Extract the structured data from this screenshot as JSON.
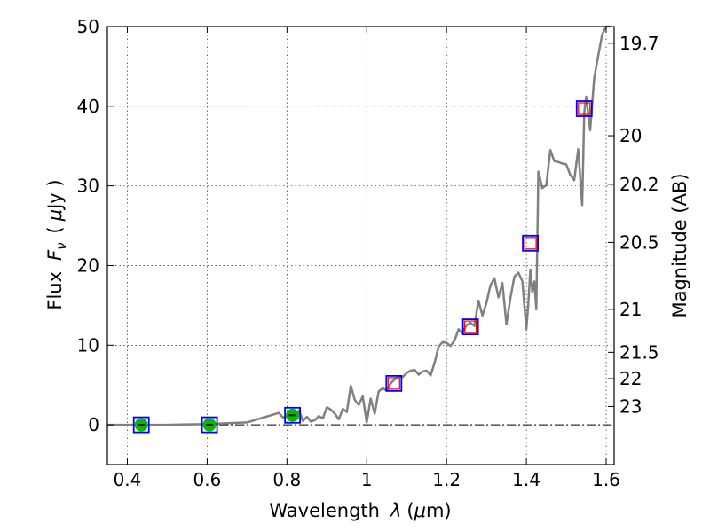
{
  "chart_data": {
    "type": "line",
    "xlabel_prefix": "Wavelength",
    "xlabel_symbol": "λ",
    "xlabel_unit_open": "(",
    "xlabel_unit_mu": "μ",
    "xlabel_unit_rest": "m)",
    "ylabel_prefix": "Flux",
    "ylabel_symbol": "F",
    "ylabel_subscript": "ν",
    "ylabel_unit_open": "(",
    "ylabel_unit_mu": "μ",
    "ylabel_unit_rest": "Jy )",
    "y2label": "Magnitude (AB)",
    "xlim": [
      0.35,
      1.62
    ],
    "ylim": [
      -5,
      50
    ],
    "grid": true,
    "x_ticks": [
      {
        "value": 0.4,
        "label": "0.4"
      },
      {
        "value": 0.6,
        "label": "0.6"
      },
      {
        "value": 0.8,
        "label": "0.8"
      },
      {
        "value": 1.0,
        "label": "1"
      },
      {
        "value": 1.2,
        "label": "1.2"
      },
      {
        "value": 1.4,
        "label": "1.4"
      },
      {
        "value": 1.6,
        "label": "1.6"
      }
    ],
    "y_ticks": [
      {
        "value": 0,
        "label": "0"
      },
      {
        "value": 10,
        "label": "10"
      },
      {
        "value": 20,
        "label": "20"
      },
      {
        "value": 30,
        "label": "30"
      },
      {
        "value": 40,
        "label": "40"
      },
      {
        "value": 50,
        "label": "50"
      }
    ],
    "mag_ticks": [
      {
        "flux": 47.9,
        "label": "19.7"
      },
      {
        "flux": 36.3,
        "label": "20"
      },
      {
        "flux": 30.2,
        "label": "20.2"
      },
      {
        "flux": 22.9,
        "label": "20.5"
      },
      {
        "flux": 14.5,
        "label": "21"
      },
      {
        "flux": 9.1,
        "label": "21.5"
      },
      {
        "flux": 5.8,
        "label": "22"
      },
      {
        "flux": 2.3,
        "label": "23"
      }
    ],
    "series": [
      {
        "color": "#808080",
        "x": [
          0.35,
          0.4,
          0.45,
          0.5,
          0.55,
          0.6,
          0.65,
          0.7,
          0.72,
          0.74,
          0.76,
          0.78,
          0.79,
          0.8,
          0.81,
          0.82,
          0.83,
          0.84,
          0.85,
          0.86,
          0.87,
          0.88,
          0.89,
          0.9,
          0.91,
          0.92,
          0.93,
          0.94,
          0.95,
          0.96,
          0.97,
          0.98,
          0.99,
          1.0,
          1.01,
          1.02,
          1.03,
          1.04,
          1.05,
          1.06,
          1.07,
          1.08,
          1.09,
          1.1,
          1.11,
          1.12,
          1.13,
          1.14,
          1.15,
          1.16,
          1.17,
          1.18,
          1.19,
          1.2,
          1.21,
          1.22,
          1.23,
          1.24,
          1.25,
          1.26,
          1.27,
          1.28,
          1.29,
          1.3,
          1.31,
          1.32,
          1.33,
          1.34,
          1.35,
          1.36,
          1.37,
          1.38,
          1.39,
          1.4,
          1.405,
          1.41,
          1.415,
          1.42,
          1.425,
          1.43,
          1.44,
          1.45,
          1.46,
          1.47,
          1.48,
          1.49,
          1.5,
          1.51,
          1.52,
          1.53,
          1.54,
          1.545,
          1.55,
          1.56,
          1.57,
          1.58,
          1.59,
          1.6,
          1.61
        ],
        "y": [
          0.0,
          0.0,
          0.0,
          0.0,
          0.05,
          0.1,
          0.2,
          0.3,
          0.6,
          0.9,
          1.2,
          1.5,
          0.9,
          1.1,
          1.4,
          1.2,
          1.8,
          0.5,
          1.0,
          0.4,
          0.6,
          1.1,
          0.8,
          2.2,
          1.9,
          1.4,
          0.7,
          2.0,
          1.6,
          4.9,
          3.1,
          2.5,
          3.6,
          0.3,
          3.3,
          1.4,
          4.2,
          4.6,
          4.3,
          5.2,
          5.7,
          6.1,
          6.0,
          6.5,
          6.8,
          6.9,
          6.3,
          6.7,
          6.8,
          6.2,
          7.8,
          9.8,
          10.4,
          10.3,
          9.9,
          10.6,
          12.0,
          11.5,
          12.5,
          12.8,
          12.4,
          15.6,
          13.7,
          15.3,
          17.5,
          18.4,
          16.0,
          17.8,
          12.6,
          15.9,
          18.6,
          19.1,
          18.0,
          12.0,
          15.2,
          19.5,
          16.7,
          18.0,
          14.5,
          31.8,
          29.7,
          30.1,
          34.5,
          33.1,
          33.0,
          32.8,
          32.7,
          31.4,
          30.7,
          34.6,
          27.6,
          39.2,
          41.2,
          37.0,
          43.5,
          46.3,
          49.0,
          50.0,
          50.0
        ]
      }
    ],
    "photometry": [
      {
        "x": 0.435,
        "flux": 0.0,
        "measured": true
      },
      {
        "x": 0.606,
        "flux": 0.0,
        "measured": true
      },
      {
        "x": 0.814,
        "flux": 1.2,
        "measured": true
      },
      {
        "x": 1.068,
        "flux": 5.2,
        "measured": false
      },
      {
        "x": 1.26,
        "flux": 12.3,
        "measured": false
      },
      {
        "x": 1.41,
        "flux": 22.8,
        "measured": false
      },
      {
        "x": 1.545,
        "flux": 39.7,
        "measured": false
      }
    ],
    "colors": {
      "model_square": "#0000ff",
      "synthetic_square": "#ff0000",
      "measured_dot": "#00bb00",
      "spectrum": "#808080"
    }
  }
}
